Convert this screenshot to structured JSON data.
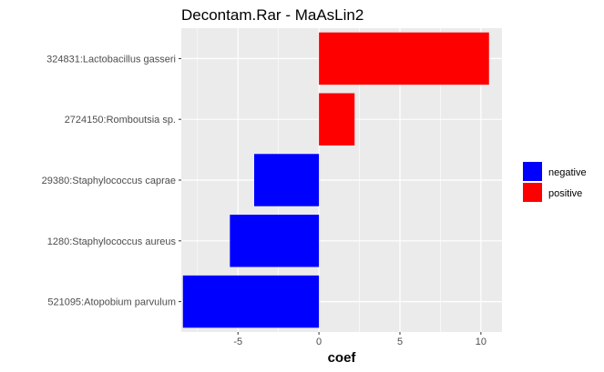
{
  "chart_data": {
    "type": "bar",
    "orientation": "horizontal",
    "title": "Decontam.Rar - MaAsLin2",
    "xlabel": "coef",
    "ylabel": "",
    "xlim": [
      -8.5,
      11.3
    ],
    "x_ticks": [
      -5,
      0,
      5,
      10
    ],
    "x_tick_labels": [
      "-5",
      "0",
      "5",
      "10"
    ],
    "categories": [
      "324831:Lactobacillus gasseri",
      "2724150:Romboutsia sp.",
      "29380:Staphylococcus caprae",
      "1280:Staphylococcus aureus",
      "521095:Atopobium parvulum"
    ],
    "values": [
      10.5,
      2.2,
      -4.0,
      -5.5,
      -8.4
    ],
    "groups": [
      "positive",
      "positive",
      "negative",
      "negative",
      "negative"
    ],
    "legend": [
      {
        "label": "negative",
        "color": "#0000ff"
      },
      {
        "label": "positive",
        "color": "#ff0000"
      }
    ],
    "legend_position": "right",
    "grid": true,
    "panel_background": "#ebebeb",
    "grid_color": "#ffffff"
  }
}
